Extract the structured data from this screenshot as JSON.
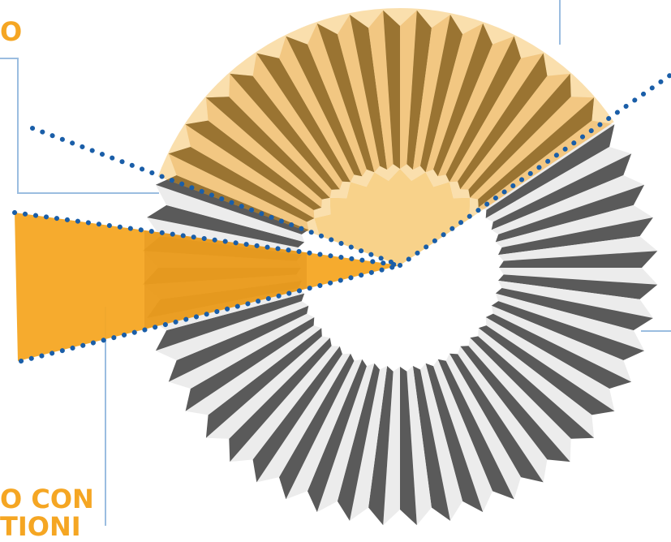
{
  "labels": {
    "top_fragment": "O",
    "bottom_fragment_line1": "O CON",
    "bottom_fragment_line2": "TIONI"
  },
  "colors": {
    "accent": "#f5a623",
    "dotted_line": "#1a5ea8",
    "callout_line": "#9bbde0",
    "gold_light": "#f2c782",
    "gold_dark": "#9a7432",
    "silver_light": "#ececec",
    "silver_dark": "#5a5a5a",
    "hole_gold": "#f8d28a"
  },
  "toroid": {
    "pleat_count": 48,
    "hole_teeth": 24
  }
}
